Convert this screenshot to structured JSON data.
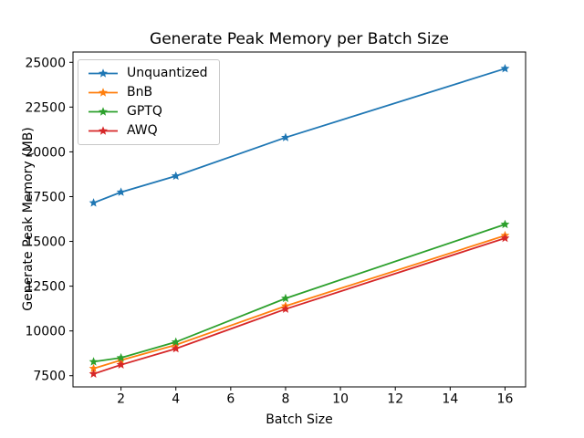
{
  "chart_data": {
    "type": "line",
    "title": "Generate Peak Memory per Batch Size",
    "xlabel": "Batch Size",
    "ylabel": "Generate Peak Memory (MB)",
    "x": [
      1,
      2,
      4,
      8,
      16
    ],
    "series": [
      {
        "name": "Unquantized",
        "color": "#1f77b4",
        "values": [
          17150,
          17750,
          18650,
          20800,
          24650
        ]
      },
      {
        "name": "BnB",
        "color": "#ff7f0e",
        "values": [
          7900,
          8370,
          9220,
          11390,
          15330
        ]
      },
      {
        "name": "GPTQ",
        "color": "#2ca02c",
        "values": [
          8280,
          8500,
          9380,
          11820,
          15950
        ]
      },
      {
        "name": "AWQ",
        "color": "#d62728",
        "values": [
          7600,
          8110,
          9010,
          11220,
          15180
        ]
      }
    ],
    "marker": "star",
    "xticks": [
      2,
      4,
      6,
      8,
      10,
      12,
      14,
      16
    ],
    "yticks": [
      7500,
      10000,
      12500,
      15000,
      17500,
      20000,
      22500,
      25000
    ],
    "xlim": [
      0.25,
      16.75
    ],
    "ylim": [
      6875,
      25575
    ],
    "grid": false,
    "legend_position": "upper left",
    "axis_color": "#000000",
    "background_color": "#ffffff"
  }
}
